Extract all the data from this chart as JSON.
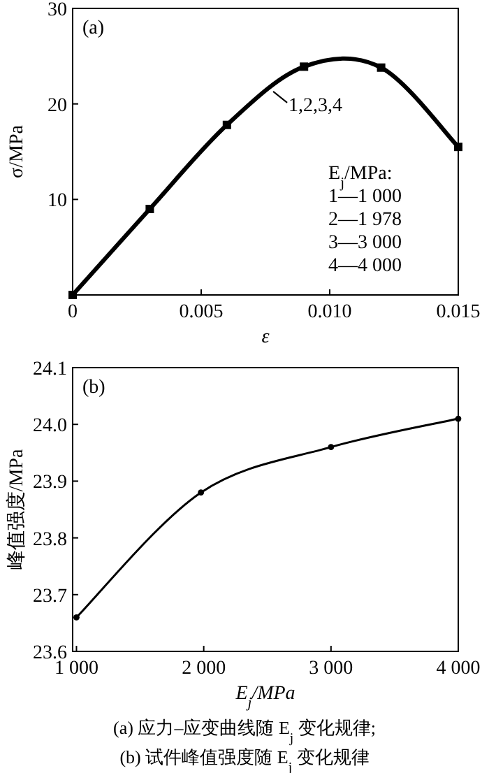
{
  "chart_data": [
    {
      "type": "line",
      "title": "(a)",
      "xlabel": "ε",
      "ylabel": "σ/MPa",
      "x": [
        0,
        0.003,
        0.006,
        0.009,
        0.012,
        0.015
      ],
      "series": [
        {
          "color": "#000000",
          "values": [
            0,
            9,
            17.8,
            23.9,
            23.8,
            15.5
          ]
        }
      ],
      "xlim": [
        0,
        0.015
      ],
      "ylim": [
        0,
        30
      ],
      "xticks": [
        0,
        0.005,
        {
          "value": 0.01,
          "label": "0.010"
        },
        0.015
      ],
      "yticks": [
        {
          "value": 0,
          "label": null
        },
        10,
        20,
        30
      ],
      "marker": "square",
      "line_style": "solid",
      "grid": false,
      "annotations": [
        {
          "text": "1,2,3,4",
          "x": 0.0078,
          "y": 21.3
        },
        "E$_{j}$/MPa:",
        "1—1 000",
        "2—1 978",
        "3—3 000",
        "4—4 000"
      ]
    },
    {
      "type": "line",
      "title": "(b)",
      "xlabel": "E$_{j}$/MPa",
      "ylabel": "峰值强度/MPa",
      "x": [
        1000,
        1978,
        3000,
        4000
      ],
      "series": [
        {
          "color": "#000000",
          "values": [
            23.66,
            23.88,
            23.96,
            24.01
          ]
        }
      ],
      "xlim": [
        970,
        4000
      ],
      "ylim": [
        23.6,
        24.1
      ],
      "xticks": [
        {
          "value": 1000,
          "label": "1 000"
        },
        {
          "value": 2000,
          "label": "2 000"
        },
        {
          "value": 3000,
          "label": "3 000"
        },
        {
          "value": 4000,
          "label": "4 000"
        }
      ],
      "yticks": [
        23.6,
        23.7,
        23.8,
        23.9,
        {
          "value": 24.0,
          "label": "24.0"
        },
        24.1
      ],
      "marker": "circle",
      "line_style": "solid",
      "grid": false,
      "annotations": [
        "(a) 应力–应变曲线随 E$_{j}$ 变化规律;",
        "(b) 试件峰值强度随 E$_{j}$ 变化规律"
      ]
    }
  ]
}
